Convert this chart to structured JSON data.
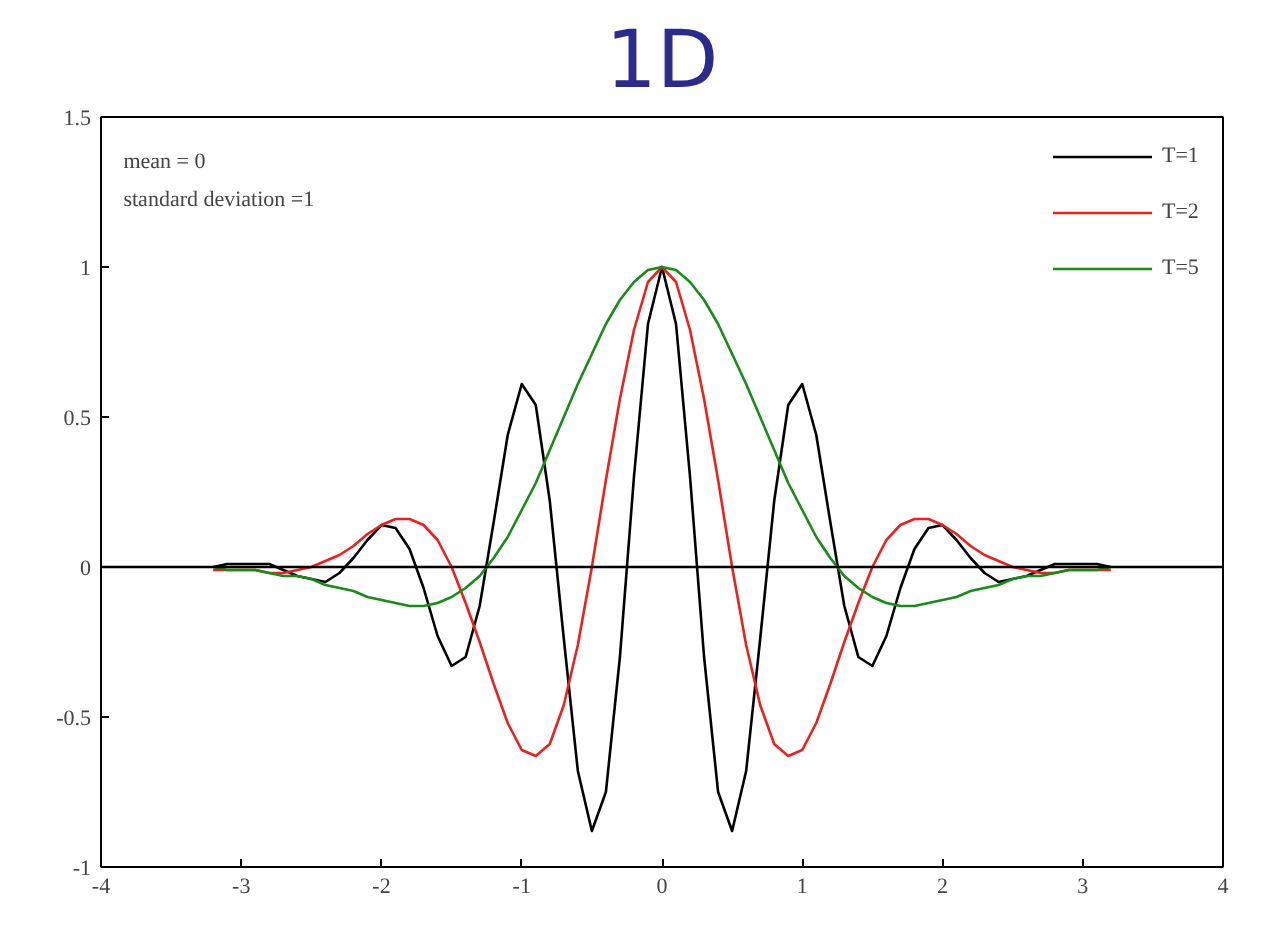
{
  "chart_data": {
    "type": "line",
    "title": "1D",
    "annotations": [
      "mean = 0",
      "standard deviation =1"
    ],
    "x": [
      -3.2,
      -3.1,
      -3.0,
      -2.9,
      -2.8,
      -2.7,
      -2.6,
      -2.5,
      -2.4,
      -2.3,
      -2.2,
      -2.1,
      -2.0,
      -1.9,
      -1.8,
      -1.7,
      -1.6,
      -1.5,
      -1.4,
      -1.3,
      -1.2,
      -1.1,
      -1.0,
      -0.9,
      -0.8,
      -0.7,
      -0.6,
      -0.5,
      -0.4,
      -0.3,
      -0.2,
      -0.1,
      0,
      0.1,
      0.2,
      0.3,
      0.4,
      0.5,
      0.6,
      0.7,
      0.8,
      0.9,
      1.0,
      1.1,
      1.2,
      1.3,
      1.4,
      1.5,
      1.6,
      1.7,
      1.8,
      1.9,
      2.0,
      2.1,
      2.2,
      2.3,
      2.4,
      2.5,
      2.6,
      2.7,
      2.8,
      2.9,
      3.0,
      3.1,
      3.2
    ],
    "series": [
      {
        "name": "T=1",
        "color": "#000000",
        "values": [
          0,
          0.01,
          0.01,
          0.01,
          0.01,
          -0.01,
          -0.03,
          -0.04,
          -0.05,
          -0.02,
          0.03,
          0.09,
          0.14,
          0.13,
          0.06,
          -0.07,
          -0.23,
          -0.33,
          -0.3,
          -0.13,
          0.15,
          0.44,
          0.61,
          0.54,
          0.22,
          -0.24,
          -0.68,
          -0.88,
          -0.75,
          -0.3,
          0.3,
          0.81,
          1,
          0.81,
          0.3,
          -0.3,
          -0.75,
          -0.88,
          -0.68,
          -0.24,
          0.22,
          0.54,
          0.61,
          0.44,
          0.15,
          -0.13,
          -0.3,
          -0.33,
          -0.23,
          -0.07,
          0.06,
          0.13,
          0.14,
          0.09,
          0.03,
          -0.02,
          -0.05,
          -0.04,
          -0.03,
          -0.01,
          0.01,
          0.01,
          0.01,
          0.01,
          0
        ]
      },
      {
        "name": "T=2",
        "color": "#e8231f",
        "values": [
          -0.01,
          -0.01,
          -0.01,
          -0.01,
          -0.02,
          -0.02,
          -0.01,
          0,
          0.02,
          0.04,
          0.07,
          0.11,
          0.14,
          0.16,
          0.16,
          0.14,
          0.09,
          0,
          -0.12,
          -0.25,
          -0.39,
          -0.52,
          -0.61,
          -0.63,
          -0.59,
          -0.46,
          -0.26,
          0,
          0.29,
          0.56,
          0.79,
          0.95,
          1,
          0.95,
          0.79,
          0.56,
          0.29,
          0,
          -0.26,
          -0.46,
          -0.59,
          -0.63,
          -0.61,
          -0.52,
          -0.39,
          -0.25,
          -0.12,
          0,
          0.09,
          0.14,
          0.16,
          0.16,
          0.14,
          0.11,
          0.07,
          0.04,
          0.02,
          0,
          -0.01,
          -0.02,
          -0.02,
          -0.01,
          -0.01,
          -0.01,
          -0.01
        ]
      },
      {
        "name": "T=5",
        "color": "#1a8a1a",
        "values": [
          0,
          -0.01,
          -0.01,
          -0.01,
          -0.02,
          -0.03,
          -0.03,
          -0.04,
          -0.06,
          -0.07,
          -0.08,
          -0.1,
          -0.11,
          -0.12,
          -0.13,
          -0.13,
          -0.12,
          -0.1,
          -0.07,
          -0.03,
          0.03,
          0.1,
          0.19,
          0.28,
          0.39,
          0.5,
          0.61,
          0.71,
          0.81,
          0.89,
          0.95,
          0.99,
          1,
          0.99,
          0.95,
          0.89,
          0.81,
          0.71,
          0.61,
          0.5,
          0.39,
          0.28,
          0.19,
          0.1,
          0.03,
          -0.03,
          -0.07,
          -0.1,
          -0.12,
          -0.13,
          -0.13,
          -0.12,
          -0.11,
          -0.1,
          -0.08,
          -0.07,
          -0.06,
          -0.04,
          -0.03,
          -0.03,
          -0.02,
          -0.01,
          -0.01,
          -0.01,
          0
        ]
      }
    ],
    "xlim": [
      -4,
      4
    ],
    "ylim": [
      -1,
      1.5
    ],
    "xticks": [
      -4,
      -3,
      -2,
      -1,
      0,
      1,
      2,
      3,
      4
    ],
    "yticks": [
      -1,
      -0.5,
      0,
      0.5,
      1,
      1.5
    ],
    "ref_lines": [
      {
        "axis": "y",
        "value": 0,
        "color": "#000000"
      }
    ],
    "legend": "top right"
  }
}
